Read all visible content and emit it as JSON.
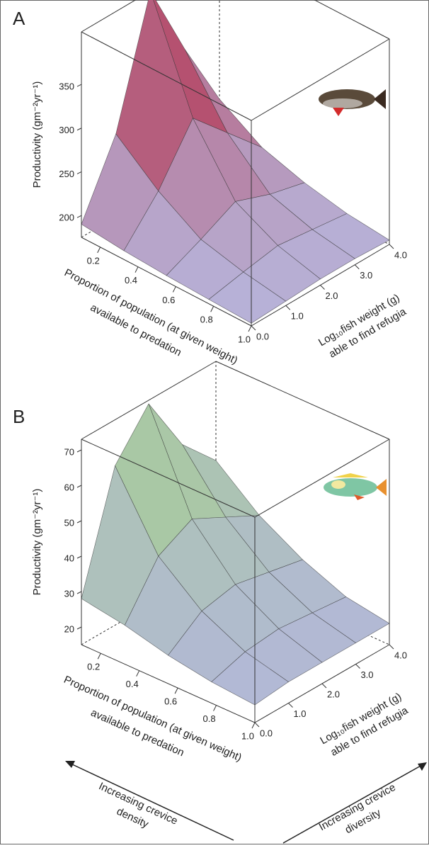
{
  "chart_data": [
    {
      "type": "surface",
      "title": "A",
      "xlabel": [
        "Proportion of population (at given weight)",
        "available to predation"
      ],
      "ylabel": [
        "Log₁₀fish weight (g)",
        "able to find refugia"
      ],
      "zlabel": "Productivity (gm⁻²yr⁻¹)",
      "x": [
        0.1,
        0.325,
        0.55,
        0.775,
        1.0
      ],
      "y": [
        0,
        1,
        2,
        3,
        4
      ],
      "z": [
        [
          190,
          270,
          410,
          320,
          240
        ],
        [
          185,
          230,
          290,
          250,
          210
        ],
        [
          182,
          200,
          220,
          205,
          195
        ],
        [
          180,
          188,
          195,
          190,
          185
        ],
        [
          178,
          180,
          182,
          182,
          180
        ]
      ],
      "xlim": [
        0.1,
        1.0
      ],
      "ylim": [
        0,
        4
      ],
      "zlim": [
        175,
        410
      ],
      "xticks": [
        0.2,
        0.4,
        0.6,
        0.8,
        {
          "value": 1,
          "label": "1.0"
        }
      ],
      "yticks": [
        {
          "value": 0,
          "label": "0.0"
        },
        {
          "value": 1,
          "label": "1.0"
        },
        {
          "value": 2,
          "label": "2.0"
        },
        {
          "value": 3,
          "label": "3.0"
        },
        {
          "value": 4,
          "label": "4.0"
        }
      ],
      "zticks": [
        200,
        250,
        300,
        350
      ],
      "colors": [
        "#b7b6dc",
        "#b3102a"
      ]
    },
    {
      "type": "surface",
      "title": "B",
      "xlabel": [
        "Proportion of population (at given weight)",
        "available to predation"
      ],
      "ylabel": [
        "Log₁₀fish weight (g)",
        "able to find refugia"
      ],
      "zlabel": "Productivity (gm⁻²yr⁻¹)",
      "x": [
        0.1,
        0.325,
        0.55,
        0.775,
        1.0
      ],
      "y": [
        0,
        1,
        2,
        3,
        4
      ],
      "z": [
        [
          28,
          60,
          72,
          55,
          45
        ],
        [
          26,
          40,
          45,
          40,
          35
        ],
        [
          23,
          30,
          32,
          30,
          28
        ],
        [
          21,
          24,
          25,
          24,
          23
        ],
        [
          20,
          21,
          21,
          21,
          21
        ]
      ],
      "xlim": [
        0.1,
        1.0
      ],
      "ylim": [
        0,
        4
      ],
      "zlim": [
        15,
        73
      ],
      "xticks": [
        0.2,
        0.4,
        0.6,
        0.8,
        {
          "value": 1,
          "label": "1.0"
        }
      ],
      "yticks": [
        {
          "value": 0,
          "label": "0.0"
        },
        {
          "value": 1,
          "label": "1.0"
        },
        {
          "value": 2,
          "label": "2.0"
        },
        {
          "value": 3,
          "label": "3.0"
        },
        {
          "value": 4,
          "label": "4.0"
        }
      ],
      "zticks": [
        20,
        30,
        40,
        50,
        60,
        70
      ],
      "colors": [
        "#b4b6de",
        "#a4d08a"
      ]
    }
  ],
  "annotations": [
    [
      "Increasing crevice",
      "density"
    ],
    [
      "Increasing crevice",
      "diversity"
    ]
  ]
}
